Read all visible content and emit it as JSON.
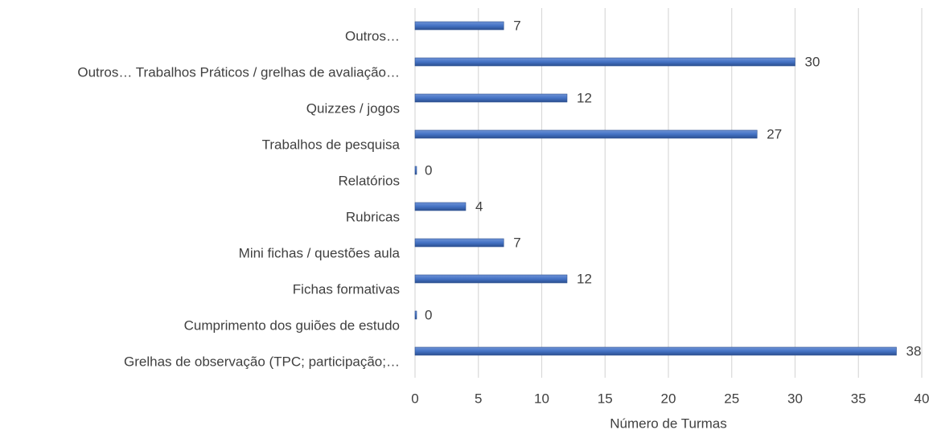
{
  "chart_data": {
    "type": "barh",
    "categories": [
      "Outros…",
      "Outros… Trabalhos Práticos / grelhas de avaliação…",
      "Quizzes / jogos",
      "Trabalhos de pesquisa",
      "Relatórios",
      "Rubricas",
      "Mini fichas / questões aula",
      "Fichas formativas",
      "Cumprimento dos guiões de estudo",
      "Grelhas de observação (TPC; participação;…"
    ],
    "values": [
      7,
      30,
      12,
      27,
      0,
      4,
      7,
      12,
      0,
      38
    ],
    "color": "#4472c4",
    "xlabel": "Número de Turmas",
    "xlim": [
      0,
      40
    ],
    "xticks": [
      0,
      5,
      10,
      15,
      20,
      25,
      30,
      35,
      40
    ],
    "grid": true
  }
}
